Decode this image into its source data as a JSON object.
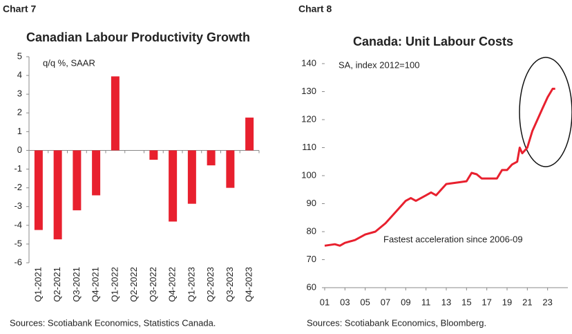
{
  "chart_data": [
    {
      "type": "bar",
      "label": "Chart 7",
      "title": "Canadian Labour Productivity Growth",
      "subtitle": "q/q %, SAAR",
      "source": "Sources: Scotiabank Economics, Statistics Canada.",
      "categories": [
        "Q1-2021",
        "Q2-2021",
        "Q3-2021",
        "Q4-2021",
        "Q1-2022",
        "Q2-2022",
        "Q3-2022",
        "Q4-2022",
        "Q1-2023",
        "Q2-2023",
        "Q3-2023",
        "Q4-2023"
      ],
      "values": [
        -4.25,
        -4.75,
        -3.2,
        -2.4,
        3.95,
        0,
        -0.5,
        -3.8,
        -2.85,
        -0.8,
        -2.0,
        1.75
      ],
      "color": "#e8202e",
      "ylim": [
        -6,
        5
      ],
      "yticks": [
        -6,
        -5,
        -4,
        -3,
        -2,
        -1,
        0,
        1,
        2,
        3,
        4,
        5
      ]
    },
    {
      "type": "line",
      "label": "Chart 8",
      "title": "Canada: Unit Labour Costs",
      "subtitle": "SA, index 2012=100",
      "annotation": "Fastest acceleration since 2006-09",
      "source": "Sources: Scotiabank Economics, Bloomberg.",
      "x": [
        2001,
        2002,
        2002.5,
        2003,
        2004,
        2005,
        2006,
        2007,
        2008,
        2009,
        2009.5,
        2010,
        2011,
        2011.5,
        2012,
        2013,
        2014,
        2015,
        2015.5,
        2016,
        2016.5,
        2017,
        2018,
        2018.5,
        2019,
        2019.5,
        2020,
        2020.25,
        2020.5,
        2021,
        2021.5,
        2022,
        2022.5,
        2023,
        2023.5,
        2023.75
      ],
      "values": [
        75,
        75.5,
        75,
        76,
        77,
        79,
        80,
        83,
        87,
        91,
        92,
        91,
        93,
        94,
        93,
        97,
        97.5,
        98,
        101,
        100.5,
        99,
        99,
        99,
        102,
        102,
        104,
        105,
        110,
        108,
        110,
        116,
        120,
        124,
        128,
        131,
        131
      ],
      "color": "#e8202e",
      "xlim": [
        2001,
        2025
      ],
      "xticks": [
        {
          "value": 2001,
          "label": "01"
        },
        {
          "value": 2003,
          "label": "03"
        },
        {
          "value": 2005,
          "label": "05"
        },
        {
          "value": 2007,
          "label": "07"
        },
        {
          "value": 2009,
          "label": "09"
        },
        {
          "value": 2011,
          "label": "11"
        },
        {
          "value": 2013,
          "label": "13"
        },
        {
          "value": 2015,
          "label": "15"
        },
        {
          "value": 2017,
          "label": "17"
        },
        {
          "value": 2019,
          "label": "19"
        },
        {
          "value": 2021,
          "label": "21"
        },
        {
          "value": 2023,
          "label": "23"
        }
      ],
      "ylim": [
        60,
        140
      ],
      "yticks": [
        60,
        70,
        80,
        90,
        100,
        110,
        120,
        130,
        140
      ]
    }
  ]
}
